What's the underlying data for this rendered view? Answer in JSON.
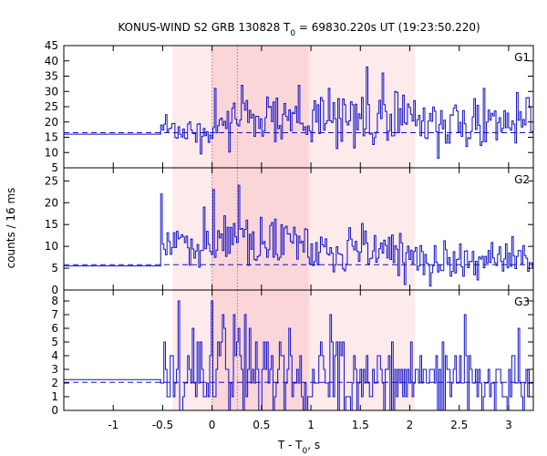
{
  "title": "KONUS-WIND S2 GRB 130828 T",
  "title_sub": "0",
  "title_rest": " = 69830.220s UT (19:23:50.220)",
  "xlabel": "T - T",
  "xlabel_sub": "0",
  "xlabel_rest": ", s",
  "ylabel": "counts / 16 ms",
  "colors": {
    "series": "#1010c8",
    "shade_light": "#fdeaea",
    "shade_dark": "#fbd6d9",
    "background_line": "#1010c8",
    "marker_lines": "#c07070"
  },
  "chart_data": {
    "type": "line",
    "step": true,
    "bin_width_s": 0.016,
    "xlim": [
      -1.5,
      3.25
    ],
    "xticks": [
      -1,
      -0.5,
      0,
      0.5,
      1,
      1.5,
      2,
      2.5,
      3
    ],
    "xtick_labels": [
      "-1",
      "-0.5",
      "0",
      "0.5",
      "1",
      "1.5",
      "2",
      "2.5",
      "3"
    ],
    "shaded_intervals": [
      {
        "x0": -0.4,
        "x1": 2.05,
        "shade": "light"
      },
      {
        "x0": 0.0,
        "x1": 0.98,
        "shade": "dark"
      }
    ],
    "vertical_markers": [
      0.0,
      0.256
    ],
    "panels": [
      {
        "label": "G1",
        "ylim": [
          5,
          45
        ],
        "yticks": [
          5,
          10,
          15,
          20,
          25,
          30,
          35,
          40,
          45
        ],
        "background": 16.5,
        "pre_level": 16.0,
        "onset": -0.52,
        "segments": [
          {
            "x0": -0.52,
            "x1": -0.4,
            "mean": 18.5,
            "sd": 2.0
          },
          {
            "x0": -0.4,
            "x1": 0.0,
            "mean": 17.0,
            "sd": 2.5
          },
          {
            "x0": 0.0,
            "x1": 0.3,
            "mean": 20.5,
            "sd": 4.5
          },
          {
            "x0": 0.3,
            "x1": 0.98,
            "mean": 21.5,
            "sd": 4.5
          },
          {
            "x0": 0.98,
            "x1": 2.05,
            "mean": 21.0,
            "sd": 5.0
          },
          {
            "x0": 2.05,
            "x1": 3.25,
            "mean": 19.5,
            "sd": 4.0
          }
        ],
        "spikes": [
          [
            0.02,
            31
          ],
          [
            0.29,
            32
          ],
          [
            0.88,
            32
          ],
          [
            1.56,
            38
          ],
          [
            1.72,
            36
          ],
          [
            2.74,
            31
          ],
          [
            3.2,
            28
          ],
          [
            1.17,
            31
          ],
          [
            1.85,
            30
          ]
        ]
      },
      {
        "label": "G2",
        "ylim": [
          0,
          28
        ],
        "yticks": [
          0,
          5,
          10,
          15,
          20,
          25
        ],
        "background": 5.8,
        "pre_level": 5.5,
        "onset": -0.52,
        "segments": [
          {
            "x0": -0.52,
            "x1": -0.4,
            "mean": 9.5,
            "sd": 3.0
          },
          {
            "x0": -0.4,
            "x1": 0.0,
            "mean": 10.5,
            "sd": 2.8
          },
          {
            "x0": 0.0,
            "x1": 0.3,
            "mean": 12.5,
            "sd": 3.5
          },
          {
            "x0": 0.3,
            "x1": 0.98,
            "mean": 10.5,
            "sd": 2.8
          },
          {
            "x0": 0.98,
            "x1": 2.05,
            "mean": 8.5,
            "sd": 2.5
          },
          {
            "x0": 2.05,
            "x1": 3.25,
            "mean": 7.0,
            "sd": 2.2
          }
        ],
        "spikes": [
          [
            -0.52,
            22
          ],
          [
            0.26,
            24
          ],
          [
            -0.09,
            19
          ],
          [
            0.12,
            17
          ],
          [
            0.35,
            16
          ],
          [
            0.7,
            15
          ]
        ]
      },
      {
        "label": "G3",
        "ylim": [
          0,
          8.8
        ],
        "yticks": [
          0,
          1,
          2,
          3,
          4,
          5,
          6,
          7,
          8
        ],
        "background": 2.05,
        "pre_level": 2.25,
        "onset": -0.52,
        "segments": [
          {
            "x0": -0.52,
            "x1": -0.4,
            "mean": 3.0,
            "sd": 1.8
          },
          {
            "x0": -0.4,
            "x1": 0.0,
            "mean": 2.8,
            "sd": 1.8
          },
          {
            "x0": 0.0,
            "x1": 0.3,
            "mean": 3.2,
            "sd": 2.0
          },
          {
            "x0": 0.3,
            "x1": 0.98,
            "mean": 2.7,
            "sd": 1.7
          },
          {
            "x0": 0.98,
            "x1": 2.05,
            "mean": 2.4,
            "sd": 1.5
          },
          {
            "x0": 2.05,
            "x1": 3.25,
            "mean": 2.2,
            "sd": 1.4
          }
        ],
        "spikes": [
          [
            -0.34,
            8
          ],
          [
            0.0,
            8
          ],
          [
            0.1,
            7
          ],
          [
            0.22,
            7
          ],
          [
            0.33,
            7
          ],
          [
            -0.2,
            6
          ],
          [
            1.2,
            7
          ]
        ]
      }
    ]
  }
}
